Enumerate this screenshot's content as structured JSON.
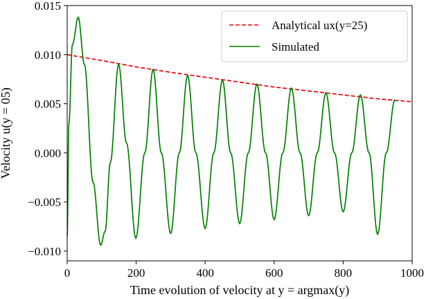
{
  "chart_data": {
    "type": "line",
    "xlabel": "Time evolution of velocity at y = argmax(y)",
    "ylabel": "Velocity u(y = 05)",
    "xlim": [
      0,
      1000
    ],
    "ylim": [
      -0.011,
      0.015
    ],
    "x_ticks": [
      0,
      200,
      400,
      600,
      800,
      1000
    ],
    "x_tick_labels": [
      "0",
      "200",
      "400",
      "600",
      "800",
      "1000"
    ],
    "y_ticks": [
      -0.01,
      -0.005,
      0.0,
      0.005,
      0.01,
      0.015
    ],
    "y_tick_labels": [
      "−0.010",
      "−0.005",
      "0.000",
      "0.005",
      "0.010",
      "0.015"
    ],
    "grid": false,
    "legend_position": "top-right",
    "series": [
      {
        "name": "Analytical ux(y=25)",
        "style": "dashed",
        "color": "#e8000b",
        "x": [
          0,
          100,
          200,
          300,
          400,
          500,
          600,
          700,
          800,
          900,
          1000
        ],
        "y": [
          0.01,
          0.0094,
          0.00875,
          0.0082,
          0.0077,
          0.0072,
          0.0067,
          0.0063,
          0.0059,
          0.0055,
          0.0052
        ]
      },
      {
        "name": "Simulated",
        "style": "solid",
        "color": "#008000",
        "x": [
          0,
          5,
          15,
          32,
          50,
          75,
          97,
          110,
          125,
          149,
          172,
          199,
          225,
          249,
          273,
          300,
          325,
          349,
          373,
          400,
          425,
          450,
          474,
          500,
          525,
          550,
          575,
          600,
          625,
          650,
          675,
          700,
          725,
          750,
          775,
          800,
          825,
          850,
          875,
          900,
          925,
          950
        ],
        "y": [
          -0.0085,
          0.003,
          0.011,
          0.0138,
          0.009,
          -0.003,
          -0.0094,
          -0.008,
          -0.001,
          0.009,
          0.001,
          -0.0087,
          0.0,
          0.0085,
          0.0,
          -0.0082,
          0.0,
          0.0079,
          0.0,
          -0.0077,
          0.0,
          0.0074,
          0.0,
          -0.0072,
          0.0,
          0.007,
          0.0,
          -0.0068,
          0.0,
          0.0066,
          0.0,
          -0.0064,
          0.0,
          0.0061,
          0.0,
          -0.006,
          0.0,
          0.0059,
          0.0,
          -0.0083,
          0.0,
          0.0054
        ]
      }
    ]
  }
}
